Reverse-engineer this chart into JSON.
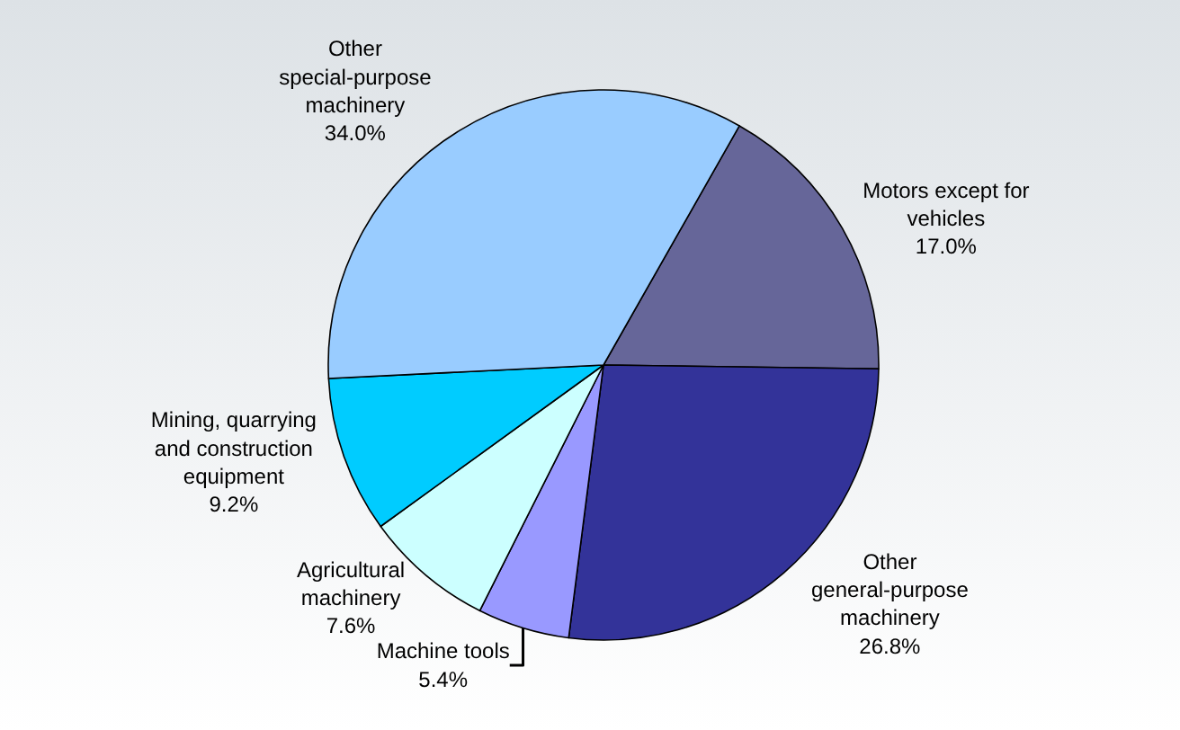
{
  "chart_data": {
    "type": "pie",
    "categories": [
      "Motors except for vehicles",
      "Other general-purpose machinery",
      "Machine tools",
      "Agricultural machinery",
      "Mining, quarrying and construction equipment",
      "Other special-purpose machinery"
    ],
    "values": [
      17.0,
      26.8,
      5.4,
      7.6,
      9.2,
      34.0
    ],
    "value_labels": [
      "17.0%",
      "26.8%",
      "5.4%",
      "7.6%",
      "9.2%",
      "34.0%"
    ],
    "colors": [
      "#666699",
      "#333399",
      "#9999ff",
      "#ccffff",
      "#00ccff",
      "#99ccff"
    ]
  }
}
